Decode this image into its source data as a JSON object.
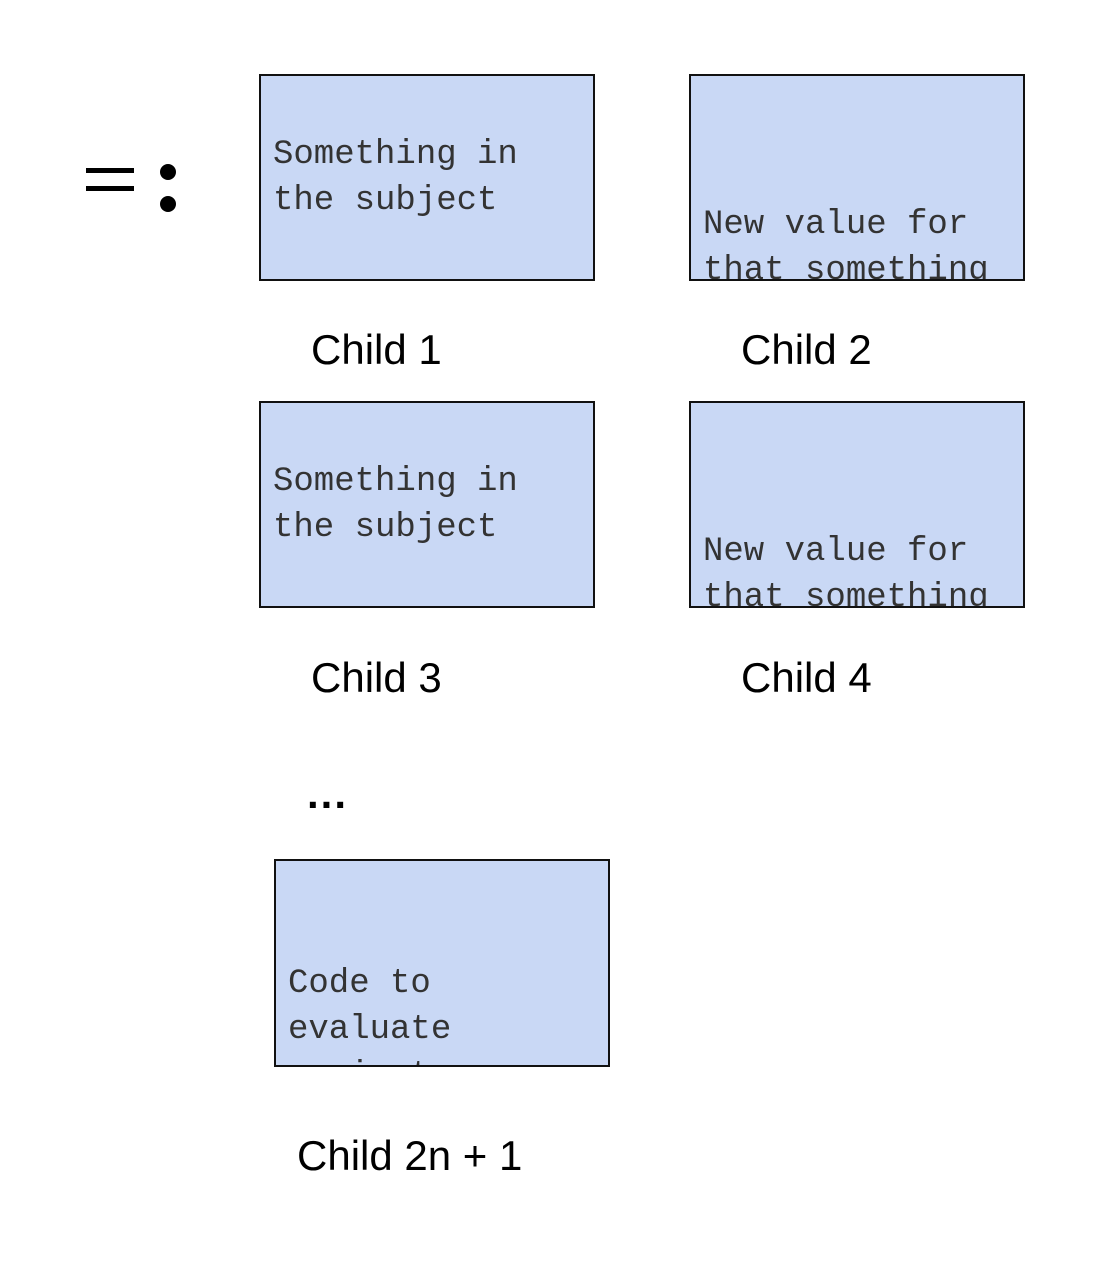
{
  "operator": {
    "symbol": "=:",
    "icon": "equals-colon-icon"
  },
  "children": [
    {
      "label": "Child 1",
      "text": "Something in the subject"
    },
    {
      "label": "Child 2",
      "text": "New value for that something"
    },
    {
      "label": "Child 3",
      "text": "Something in the subject"
    },
    {
      "label": "Child 4",
      "text": "New value for that something"
    }
  ],
  "ellipsis": "...",
  "last_child": {
    "label": "Child 2n + 1",
    "text": "Code to evaluate against new subject"
  },
  "colors": {
    "box_fill": "#c9d8f5",
    "box_border": "#111111",
    "box_text": "#333333"
  }
}
